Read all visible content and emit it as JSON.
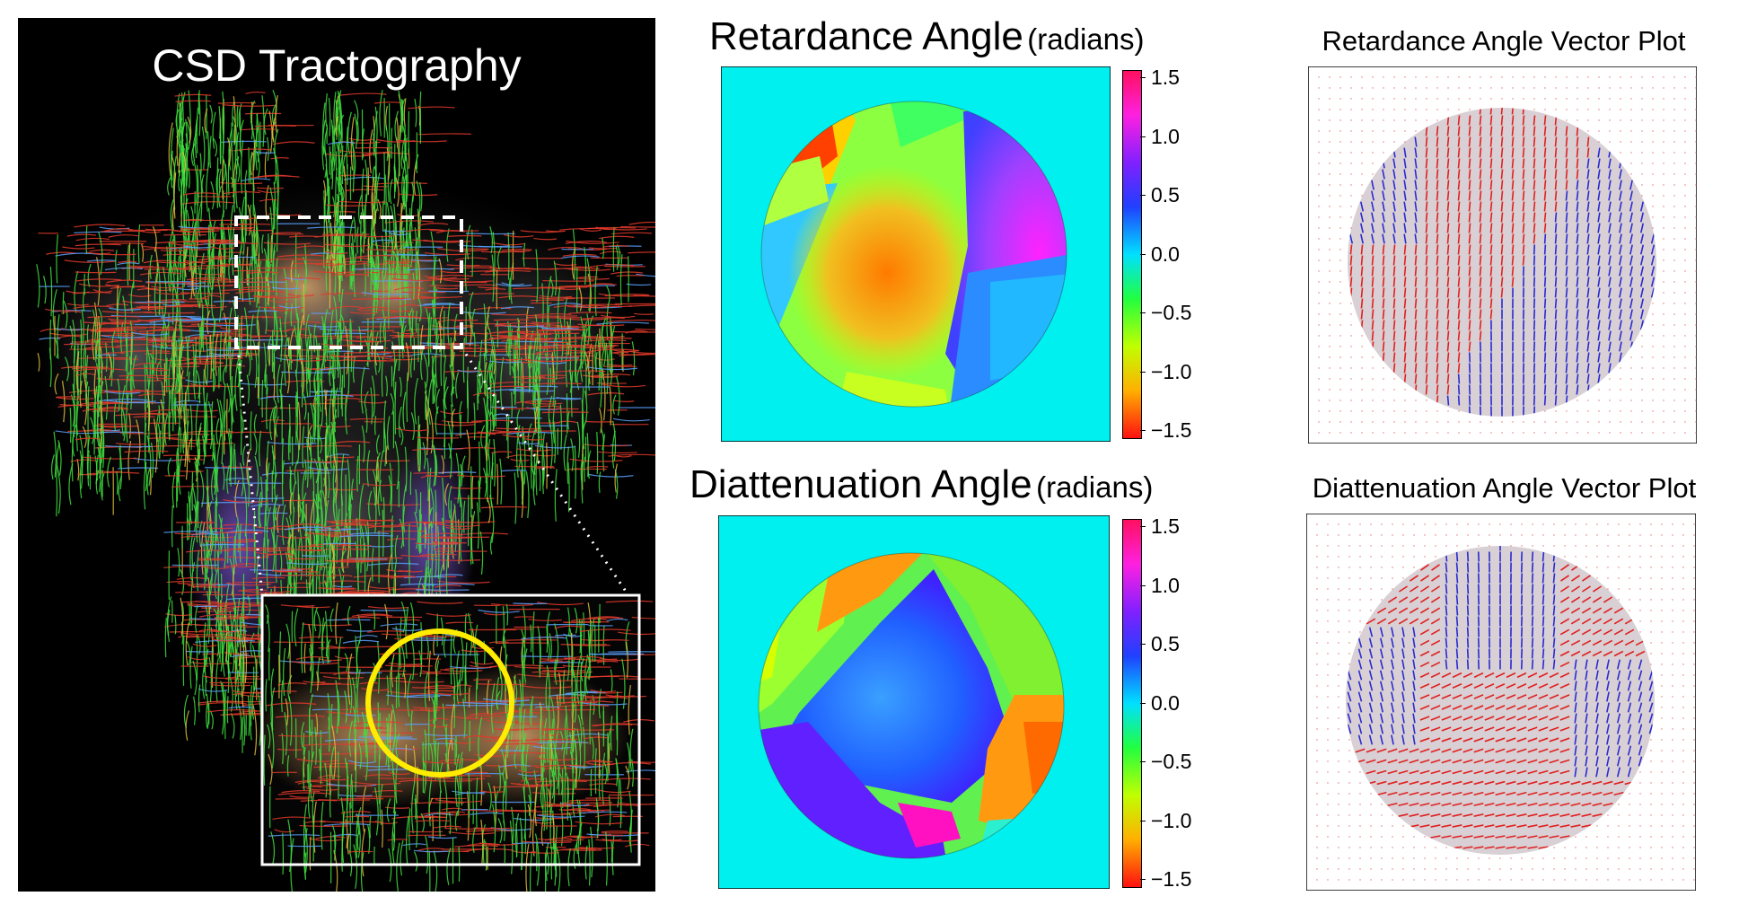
{
  "tractography": {
    "title": "CSD Tractography"
  },
  "retardance": {
    "title": "Retardance Angle",
    "unit": "(radians)",
    "vector_title": "Retardance Angle Vector Plot"
  },
  "diattenuation": {
    "title": "Diattenuation Angle",
    "unit": "(radians)",
    "vector_title": "Diattenuation Angle Vector Plot"
  },
  "colorbar": {
    "ticks": [
      "1.5",
      "1.0",
      "0.5",
      "0.0",
      "−0.5",
      "−1.0",
      "−1.5"
    ]
  },
  "colors": {
    "fiber_green": "#3fe23f",
    "fiber_red": "#e23a2a",
    "circle_yellow": "#ffec00",
    "vector_red": "#e02020",
    "vector_blue": "#2a2ad0",
    "background_cyan": "#00f0f0"
  }
}
